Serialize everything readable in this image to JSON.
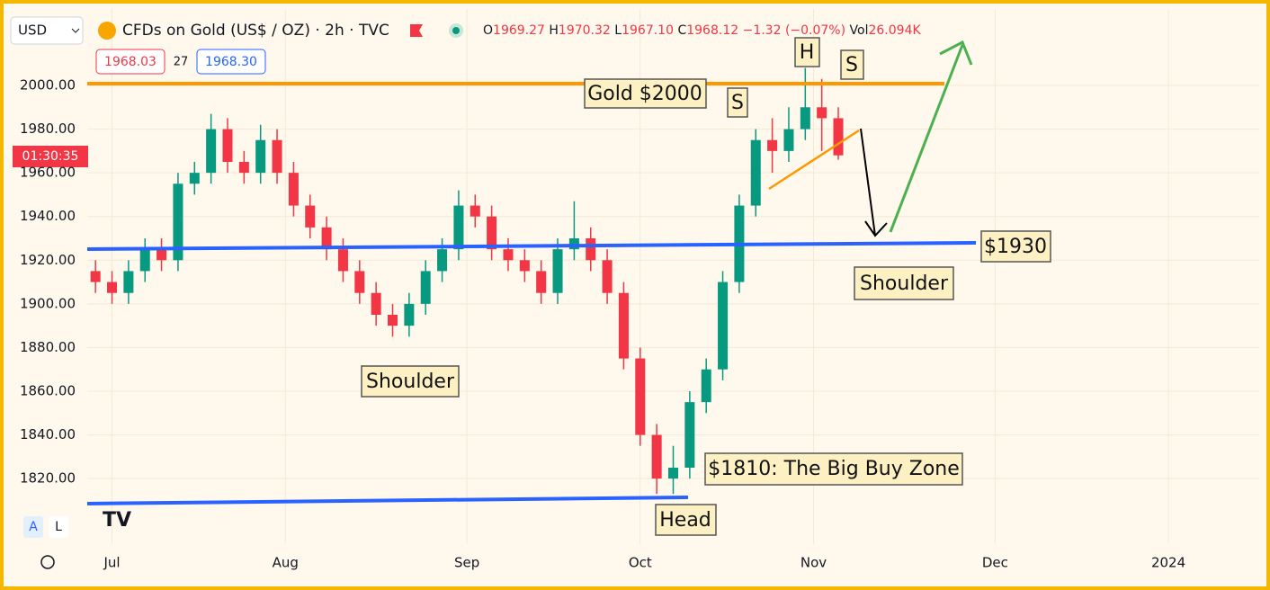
{
  "header": {
    "currency": "USD",
    "symbol": "CFDs on Gold (US$ / OZ) · 2h · TVC",
    "ohlc": [
      [
        "O",
        "1969.27"
      ],
      [
        "H",
        "1970.32"
      ],
      [
        "L",
        "1967.10"
      ],
      [
        "C",
        "1968.12"
      ]
    ],
    "change": "−1.32 (−0.07%)",
    "volume_label": "Vol",
    "volume": "26.094K",
    "bid": "1968.03",
    "spread": "27",
    "ask": "1968.30",
    "countdown": "01:30:35",
    "scale_buttons": [
      "A",
      "L"
    ]
  },
  "chart_data": {
    "type": "candlestick",
    "x": [
      -2,
      0,
      2,
      4,
      6,
      8,
      10,
      12,
      14,
      16,
      18,
      20,
      22,
      24,
      26,
      28,
      30,
      32,
      34,
      36,
      38,
      40,
      42,
      44,
      46,
      48,
      50,
      52,
      54,
      56,
      58,
      60,
      62,
      64,
      66,
      68,
      70,
      72,
      74,
      76,
      78,
      80,
      82,
      84,
      86,
      88
    ],
    "open": [
      1915,
      1910,
      1905,
      1915,
      1925,
      1920,
      1955,
      1960,
      1980,
      1965,
      1960,
      1975,
      1960,
      1945,
      1935,
      1925,
      1915,
      1905,
      1895,
      1890,
      1900,
      1915,
      1925,
      1945,
      1940,
      1925,
      1920,
      1915,
      1905,
      1925,
      1930,
      1920,
      1905,
      1875,
      1840,
      1820,
      1825,
      1855,
      1870,
      1910,
      1945,
      1975,
      1970,
      1980,
      1990,
      1985
    ],
    "high": [
      1920,
      1915,
      1920,
      1930,
      1930,
      1960,
      1965,
      1987,
      1985,
      1970,
      1982,
      1980,
      1965,
      1950,
      1940,
      1930,
      1920,
      1910,
      1900,
      1905,
      1920,
      1930,
      1952,
      1950,
      1945,
      1930,
      1925,
      1920,
      1930,
      1947,
      1935,
      1925,
      1910,
      1880,
      1845,
      1835,
      1860,
      1875,
      1915,
      1950,
      1980,
      1985,
      1990,
      2008,
      2003,
      1990
    ],
    "low": [
      1905,
      1900,
      1900,
      1910,
      1915,
      1915,
      1950,
      1955,
      1960,
      1955,
      1955,
      1955,
      1940,
      1930,
      1920,
      1910,
      1900,
      1890,
      1885,
      1885,
      1895,
      1910,
      1920,
      1935,
      1920,
      1915,
      1910,
      1900,
      1900,
      1920,
      1915,
      1900,
      1870,
      1835,
      1813,
      1813,
      1820,
      1850,
      1865,
      1905,
      1940,
      1960,
      1965,
      1975,
      1970,
      1966
    ],
    "close": [
      1910,
      1905,
      1915,
      1925,
      1920,
      1955,
      1960,
      1980,
      1965,
      1960,
      1975,
      1960,
      1945,
      1935,
      1925,
      1915,
      1905,
      1895,
      1890,
      1900,
      1915,
      1925,
      1945,
      1940,
      1925,
      1920,
      1915,
      1905,
      1925,
      1930,
      1920,
      1905,
      1875,
      1840,
      1820,
      1825,
      1855,
      1870,
      1910,
      1945,
      1975,
      1970,
      1980,
      1990,
      1985,
      1968
    ],
    "up_color": "#089981",
    "down_color": "#f23645",
    "xlim": [
      -3,
      139
    ],
    "xticks": [
      {
        "value": 0,
        "label": "Jul"
      },
      {
        "value": 21,
        "label": "Aug"
      },
      {
        "value": 43,
        "label": "Sep"
      },
      {
        "value": 64,
        "label": "Oct"
      },
      {
        "value": 85,
        "label": "Nov"
      },
      {
        "value": 107,
        "label": "Dec"
      },
      {
        "value": 128,
        "label": "2024"
      }
    ],
    "ylim": [
      1790,
      2035
    ],
    "yticks": [
      {
        "value": 1820,
        "label": "1820.00"
      },
      {
        "value": 1840,
        "label": "1840.00"
      },
      {
        "value": 1860,
        "label": "1860.00"
      },
      {
        "value": 1880,
        "label": "1880.00"
      },
      {
        "value": 1900,
        "label": "1900.00"
      },
      {
        "value": 1920,
        "label": "1920.00"
      },
      {
        "value": 1940,
        "label": "1940.00"
      },
      {
        "value": 1960,
        "label": "1960.00"
      },
      {
        "value": 1980,
        "label": "1980.00"
      },
      {
        "value": 2000,
        "label": "2000.00"
      }
    ],
    "grid": true,
    "annotations": [
      "Gold $2000",
      "S",
      "H",
      "S",
      "$1930",
      "Shoulder",
      "Shoulder",
      "$1810: The Big Buy Zone",
      "Head"
    ]
  }
}
